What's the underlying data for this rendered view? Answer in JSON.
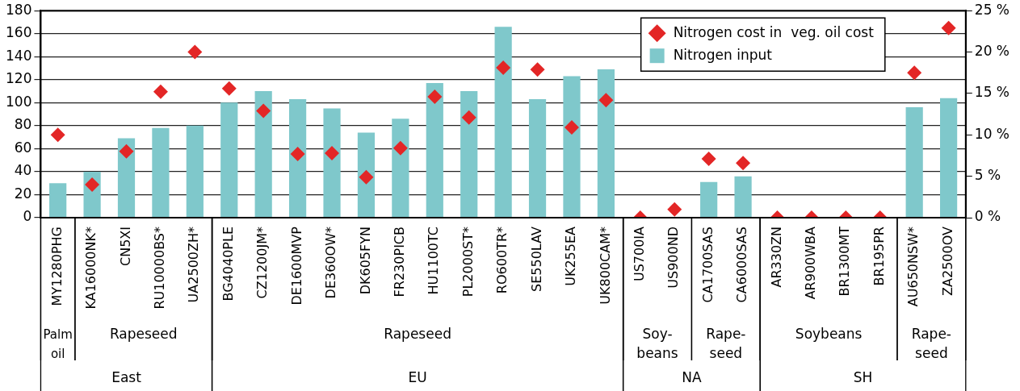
{
  "chart_data": {
    "type": "bar",
    "categories": [
      "MY1280PHG",
      "KA16000NK*",
      "CN5XI",
      "RU10000BS*",
      "UA2500ZH*",
      "BG4040PLE",
      "CZ1200JM*",
      "DE1600MVP",
      "DE360OW*",
      "DK605FYN",
      "FR230PICB",
      "HU1100TC",
      "PL2000ST*",
      "RO600TR*",
      "SE550LAV",
      "UK255EA",
      "UK800CAM*",
      "US700IA",
      "US900ND",
      "CA1700SAS",
      "CA6000SAS",
      "AR330ZN",
      "AR900WBA",
      "BR1300MT",
      "BR195PR",
      "AU650NSW*",
      "ZA2500OV"
    ],
    "series": [
      {
        "name": "Nitrogen cost in  veg. oil cost",
        "type": "scatter",
        "axis": "y2",
        "color": "#e32626",
        "marker": "diamond",
        "x": [
          "MY1280PHG",
          "KA16000NK*",
          "CN5XI",
          "RU10000BS*",
          "UA2500ZH*",
          "BG4040PLE",
          "CZ1200JM*",
          "DE1600MVP",
          "DE360OW*",
          "DK605FYN",
          "FR230PICB",
          "HU1100TC",
          "PL2000ST*",
          "RO600TR*",
          "SE550LAV",
          "UK255EA",
          "UK800CAM*",
          "US700IA",
          "US900ND",
          "CA1700SAS",
          "CA6000SAS",
          "AR330ZN",
          "AR900WBA",
          "BR1300MT",
          "BR195PR",
          "AU650NSW*",
          "ZA2500OV"
        ],
        "values": [
          10,
          4,
          8,
          15.2,
          20,
          15.6,
          12.9,
          7.7,
          7.8,
          4.9,
          8.4,
          14.6,
          12.1,
          18.1,
          17.9,
          10.9,
          14.2,
          0,
          1,
          7.1,
          6.6,
          0,
          0,
          0,
          0,
          17.5,
          22.9
        ]
      },
      {
        "name": "Nitrogen input",
        "type": "bar",
        "color": "#7fc8cb",
        "values": [
          30,
          40,
          69,
          78,
          80,
          100,
          110,
          103,
          95,
          74,
          86,
          117,
          110,
          166,
          103,
          123,
          129,
          0,
          null,
          31,
          36,
          0,
          0,
          0,
          0,
          96,
          104
        ]
      }
    ],
    "ylim": [
      0,
      180
    ],
    "yticks": [
      0,
      20,
      40,
      60,
      80,
      100,
      120,
      140,
      160,
      180
    ],
    "y2lim": [
      0,
      25
    ],
    "y2ticks": [
      {
        "value": 0,
        "label": "0 %"
      },
      {
        "value": 5,
        "label": "5 %"
      },
      {
        "value": 10,
        "label": "10 %"
      },
      {
        "value": 15,
        "label": "15 %"
      },
      {
        "value": 20,
        "label": "20 %"
      },
      {
        "value": 25,
        "label": "25 %"
      }
    ],
    "grid": "y",
    "legend": "top right",
    "annotations": [
      "Palm oil",
      "Rapeseed",
      "Rapeseed",
      "Soy-beans",
      "Rape-seed",
      "Soybeans",
      "Rape-seed",
      "East",
      "EU",
      "NA",
      "SH"
    ]
  }
}
